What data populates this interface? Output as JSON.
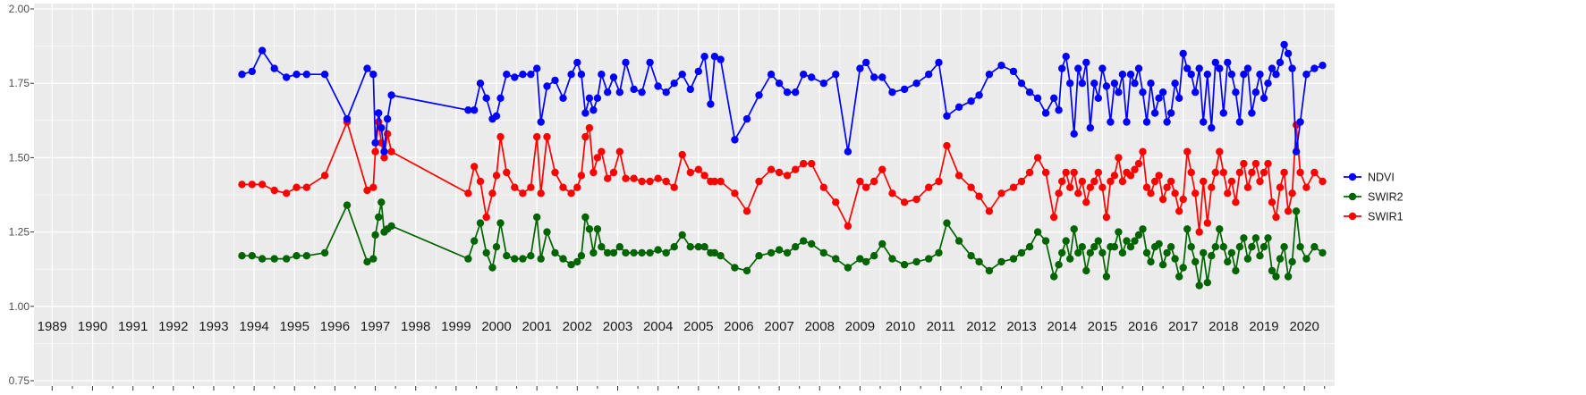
{
  "chart_data": {
    "type": "line",
    "title": "",
    "xlabel": "",
    "ylabel": "",
    "xlim": [
      1988.55,
      2020.75
    ],
    "ylim": [
      0.75,
      2.0
    ],
    "grid": true,
    "legend_position": "right",
    "style": {
      "panel_bg": "#EBEBEB",
      "grid_color": "#FFFFFF",
      "tick_color": "#333333",
      "axis_label_color": "#4D4D4D",
      "year_label_color": "#1A1A1A",
      "legend_text_color": "#1A1A1A"
    },
    "y_ticks": [
      0.75,
      1.0,
      1.25,
      1.5,
      1.75,
      2.0
    ],
    "y_tick_labels": [
      "0.75",
      "1.00",
      "1.25",
      "1.50",
      "1.75",
      "2.00"
    ],
    "x_ticks": [
      1989,
      1990,
      1991,
      1992,
      1993,
      1994,
      1995,
      1996,
      1997,
      1998,
      1999,
      2000,
      2001,
      2002,
      2003,
      2004,
      2005,
      2006,
      2007,
      2008,
      2009,
      2010,
      2011,
      2012,
      2013,
      2014,
      2015,
      2016,
      2017,
      2018,
      2019,
      2020
    ],
    "x_tick_labels": [
      "1989",
      "1990",
      "1991",
      "1992",
      "1993",
      "1994",
      "1995",
      "1996",
      "1997",
      "1998",
      "1999",
      "2000",
      "2001",
      "2002",
      "2003",
      "2004",
      "2005",
      "2006",
      "2007",
      "2008",
      "2009",
      "2010",
      "2011",
      "2012",
      "2013",
      "2014",
      "2015",
      "2016",
      "2017",
      "2018",
      "2019",
      "2020"
    ],
    "x": [
      1993.7,
      1993.95,
      1994.2,
      1994.5,
      1994.8,
      1995.05,
      1995.3,
      1995.75,
      1996.3,
      1996.8,
      1996.95,
      1997.0,
      1997.08,
      1997.15,
      1997.22,
      1997.3,
      1997.4,
      1999.3,
      1999.45,
      1999.6,
      1999.75,
      1999.9,
      2000.0,
      2000.1,
      2000.25,
      2000.45,
      2000.65,
      2000.85,
      2001.0,
      2001.1,
      2001.25,
      2001.45,
      2001.65,
      2001.85,
      2002.0,
      2002.1,
      2002.2,
      2002.3,
      2002.4,
      2002.5,
      2002.6,
      2002.75,
      2002.9,
      2003.05,
      2003.2,
      2003.4,
      2003.6,
      2003.8,
      2004.0,
      2004.2,
      2004.4,
      2004.6,
      2004.8,
      2005.0,
      2005.15,
      2005.3,
      2005.4,
      2005.55,
      2005.9,
      2006.2,
      2006.5,
      2006.8,
      2007.0,
      2007.2,
      2007.4,
      2007.6,
      2007.8,
      2008.1,
      2008.4,
      2008.7,
      2009.0,
      2009.15,
      2009.35,
      2009.55,
      2009.8,
      2010.1,
      2010.4,
      2010.7,
      2010.95,
      2011.15,
      2011.45,
      2011.75,
      2011.95,
      2012.2,
      2012.5,
      2012.8,
      2013.0,
      2013.2,
      2013.4,
      2013.6,
      2013.8,
      2013.92,
      2014.0,
      2014.1,
      2014.2,
      2014.3,
      2014.4,
      2014.5,
      2014.6,
      2014.7,
      2014.8,
      2014.9,
      2015.0,
      2015.1,
      2015.2,
      2015.3,
      2015.4,
      2015.5,
      2015.6,
      2015.7,
      2015.8,
      2015.9,
      2016.0,
      2016.1,
      2016.2,
      2016.3,
      2016.4,
      2016.5,
      2016.6,
      2016.7,
      2016.8,
      2016.9,
      2017.0,
      2017.1,
      2017.2,
      2017.3,
      2017.4,
      2017.5,
      2017.6,
      2017.7,
      2017.8,
      2017.9,
      2018.0,
      2018.1,
      2018.2,
      2018.3,
      2018.4,
      2018.5,
      2018.6,
      2018.7,
      2018.8,
      2018.9,
      2019.0,
      2019.1,
      2019.2,
      2019.3,
      2019.4,
      2019.5,
      2019.6,
      2019.7,
      2019.8,
      2019.9,
      2020.05,
      2020.25,
      2020.45
    ],
    "series": [
      {
        "name": "NDVI",
        "color": "#0000FF",
        "values": [
          1.78,
          1.79,
          1.86,
          1.8,
          1.77,
          1.78,
          1.78,
          1.78,
          1.63,
          1.8,
          1.78,
          1.55,
          1.65,
          1.6,
          1.52,
          1.63,
          1.71,
          1.66,
          1.66,
          1.75,
          1.7,
          1.63,
          1.64,
          1.7,
          1.78,
          1.77,
          1.78,
          1.78,
          1.8,
          1.62,
          1.74,
          1.76,
          1.7,
          1.78,
          1.82,
          1.78,
          1.65,
          1.7,
          1.66,
          1.7,
          1.78,
          1.72,
          1.77,
          1.72,
          1.82,
          1.73,
          1.72,
          1.82,
          1.74,
          1.72,
          1.75,
          1.78,
          1.73,
          1.79,
          1.84,
          1.68,
          1.84,
          1.83,
          1.56,
          1.63,
          1.71,
          1.78,
          1.75,
          1.72,
          1.72,
          1.78,
          1.77,
          1.75,
          1.78,
          1.52,
          1.8,
          1.82,
          1.77,
          1.77,
          1.72,
          1.73,
          1.75,
          1.78,
          1.82,
          1.64,
          1.67,
          1.69,
          1.71,
          1.78,
          1.81,
          1.79,
          1.75,
          1.72,
          1.7,
          1.65,
          1.7,
          1.66,
          1.8,
          1.84,
          1.75,
          1.58,
          1.8,
          1.75,
          1.82,
          1.6,
          1.75,
          1.7,
          1.8,
          1.74,
          1.62,
          1.75,
          1.72,
          1.78,
          1.62,
          1.78,
          1.75,
          1.8,
          1.72,
          1.62,
          1.75,
          1.65,
          1.7,
          1.72,
          1.62,
          1.65,
          1.75,
          1.7,
          1.85,
          1.8,
          1.78,
          1.72,
          1.8,
          1.62,
          1.78,
          1.6,
          1.82,
          1.8,
          1.65,
          1.82,
          1.78,
          1.72,
          1.62,
          1.78,
          1.8,
          1.65,
          1.72,
          1.78,
          1.7,
          1.75,
          1.8,
          1.78,
          1.82,
          1.88,
          1.85,
          1.8,
          1.52,
          1.62,
          1.78,
          1.8,
          1.81
        ]
      },
      {
        "name": "SWIR2",
        "color": "#006400",
        "values": [
          1.17,
          1.17,
          1.16,
          1.16,
          1.16,
          1.17,
          1.17,
          1.18,
          1.34,
          1.15,
          1.16,
          1.24,
          1.3,
          1.35,
          1.25,
          1.26,
          1.27,
          1.16,
          1.22,
          1.28,
          1.18,
          1.13,
          1.2,
          1.28,
          1.17,
          1.16,
          1.16,
          1.17,
          1.3,
          1.16,
          1.25,
          1.18,
          1.16,
          1.14,
          1.15,
          1.17,
          1.3,
          1.26,
          1.18,
          1.26,
          1.2,
          1.18,
          1.18,
          1.2,
          1.18,
          1.18,
          1.18,
          1.18,
          1.19,
          1.18,
          1.2,
          1.24,
          1.2,
          1.2,
          1.2,
          1.18,
          1.18,
          1.17,
          1.13,
          1.12,
          1.17,
          1.18,
          1.19,
          1.18,
          1.2,
          1.22,
          1.21,
          1.18,
          1.16,
          1.13,
          1.16,
          1.15,
          1.17,
          1.21,
          1.16,
          1.14,
          1.15,
          1.16,
          1.18,
          1.28,
          1.22,
          1.17,
          1.15,
          1.12,
          1.15,
          1.16,
          1.18,
          1.2,
          1.25,
          1.22,
          1.1,
          1.14,
          1.18,
          1.22,
          1.16,
          1.26,
          1.18,
          1.2,
          1.12,
          1.18,
          1.2,
          1.22,
          1.18,
          1.1,
          1.2,
          1.2,
          1.25,
          1.18,
          1.22,
          1.2,
          1.22,
          1.24,
          1.26,
          1.18,
          1.15,
          1.2,
          1.21,
          1.14,
          1.18,
          1.2,
          1.16,
          1.1,
          1.13,
          1.26,
          1.2,
          1.15,
          1.07,
          1.18,
          1.08,
          1.17,
          1.2,
          1.26,
          1.2,
          1.15,
          1.18,
          1.12,
          1.2,
          1.23,
          1.16,
          1.2,
          1.23,
          1.17,
          1.2,
          1.23,
          1.12,
          1.1,
          1.16,
          1.2,
          1.1,
          1.15,
          1.32,
          1.2,
          1.16,
          1.2,
          1.18
        ]
      },
      {
        "name": "SWIR1",
        "color": "#FF0000",
        "values": [
          1.41,
          1.41,
          1.41,
          1.39,
          1.38,
          1.4,
          1.4,
          1.44,
          1.62,
          1.39,
          1.4,
          1.52,
          1.62,
          1.55,
          1.5,
          1.58,
          1.52,
          1.38,
          1.47,
          1.42,
          1.3,
          1.38,
          1.44,
          1.57,
          1.45,
          1.4,
          1.38,
          1.4,
          1.57,
          1.38,
          1.57,
          1.45,
          1.4,
          1.38,
          1.4,
          1.44,
          1.57,
          1.6,
          1.45,
          1.5,
          1.52,
          1.43,
          1.45,
          1.52,
          1.43,
          1.43,
          1.42,
          1.42,
          1.43,
          1.42,
          1.4,
          1.51,
          1.45,
          1.46,
          1.44,
          1.42,
          1.42,
          1.42,
          1.38,
          1.32,
          1.42,
          1.46,
          1.45,
          1.44,
          1.46,
          1.48,
          1.48,
          1.4,
          1.35,
          1.27,
          1.42,
          1.4,
          1.42,
          1.46,
          1.38,
          1.35,
          1.36,
          1.4,
          1.42,
          1.54,
          1.44,
          1.4,
          1.37,
          1.32,
          1.38,
          1.4,
          1.42,
          1.45,
          1.5,
          1.45,
          1.3,
          1.38,
          1.42,
          1.45,
          1.4,
          1.45,
          1.38,
          1.42,
          1.35,
          1.4,
          1.42,
          1.45,
          1.4,
          1.3,
          1.42,
          1.44,
          1.5,
          1.42,
          1.45,
          1.44,
          1.46,
          1.48,
          1.52,
          1.4,
          1.38,
          1.42,
          1.44,
          1.36,
          1.4,
          1.42,
          1.38,
          1.32,
          1.36,
          1.52,
          1.45,
          1.38,
          1.25,
          1.42,
          1.28,
          1.4,
          1.45,
          1.52,
          1.45,
          1.38,
          1.42,
          1.35,
          1.45,
          1.48,
          1.4,
          1.45,
          1.48,
          1.42,
          1.45,
          1.48,
          1.35,
          1.3,
          1.4,
          1.45,
          1.32,
          1.38,
          1.61,
          1.45,
          1.4,
          1.45,
          1.42
        ]
      }
    ],
    "legend": {
      "items": [
        {
          "label": "NDVI",
          "color": "#0000FF"
        },
        {
          "label": "SWIR2",
          "color": "#006400"
        },
        {
          "label": "SWIR1",
          "color": "#FF0000"
        }
      ]
    }
  }
}
